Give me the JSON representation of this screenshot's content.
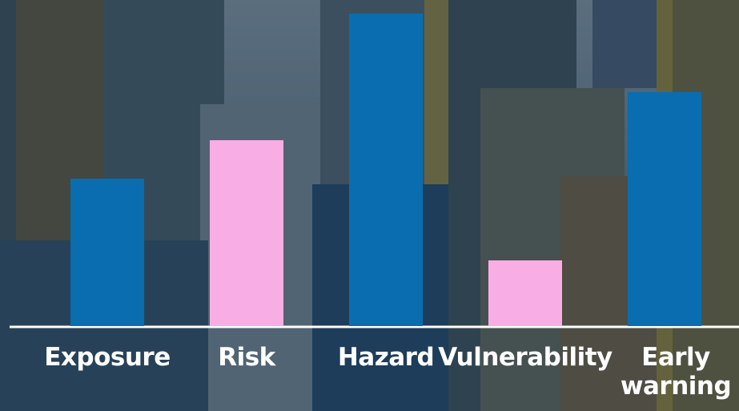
{
  "chart_data": {
    "type": "bar",
    "categories": [
      "Exposure",
      "Risk",
      "Hazard",
      "Vulnerability",
      "Early warning"
    ],
    "values": [
      184,
      232,
      390,
      82,
      292
    ],
    "colors": [
      "#0a6db0",
      "#f8aee4",
      "#0a6db0",
      "#f8aee4",
      "#0a6db0"
    ],
    "ylim": [
      0,
      390
    ]
  }
}
